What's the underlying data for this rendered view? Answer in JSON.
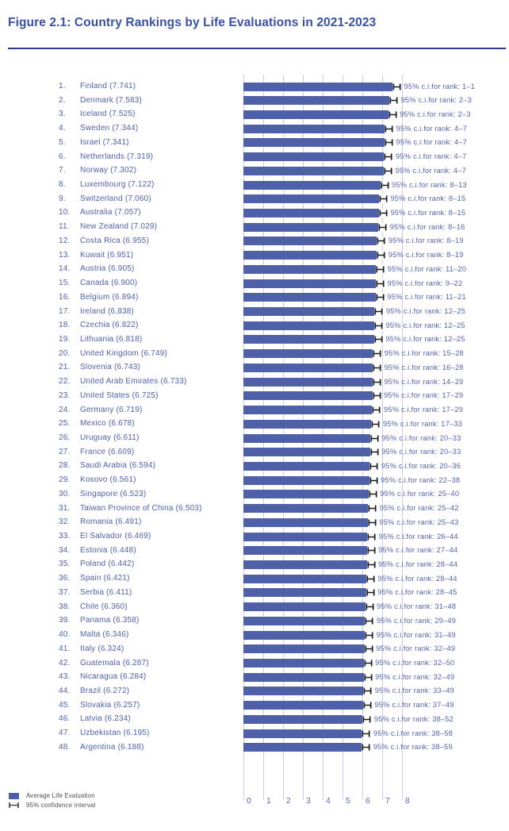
{
  "figure": {
    "title": "Figure 2.1: Country Rankings by Life Evaluations in 2021-2023"
  },
  "legend": {
    "bar_label": "Average Life Evaluation",
    "ci_label": "95% confidence interval"
  },
  "chart_data": {
    "type": "bar",
    "orientation": "horizontal",
    "title": "Figure 2.1: Country Rankings by Life Evaluations in 2021-2023",
    "xlabel": "",
    "ylabel": "",
    "xlim": [
      0,
      8
    ],
    "x_ticks": [
      "0",
      "1",
      "2",
      "3",
      "4",
      "5",
      "6",
      "7",
      "8"
    ],
    "grid": true,
    "legend_position": "bottom-left",
    "bar_color": "#4e61a8",
    "gridline_color": "#c7cde7",
    "errorbar_color": "#1b1b1b",
    "ci_prefix": "95% c.i.for rank: ",
    "rows": [
      {
        "rank": 1,
        "country": "Finland",
        "score": 7.741,
        "rank_ci": "1–1"
      },
      {
        "rank": 2,
        "country": "Denmark",
        "score": 7.583,
        "rank_ci": "2–3"
      },
      {
        "rank": 3,
        "country": "Iceland",
        "score": 7.525,
        "rank_ci": "2–3"
      },
      {
        "rank": 4,
        "country": "Sweden",
        "score": 7.344,
        "rank_ci": "4–7"
      },
      {
        "rank": 5,
        "country": "Israel",
        "score": 7.341,
        "rank_ci": "4–7"
      },
      {
        "rank": 6,
        "country": "Netherlands",
        "score": 7.319,
        "rank_ci": "4–7"
      },
      {
        "rank": 7,
        "country": "Norway",
        "score": 7.302,
        "rank_ci": "4–7"
      },
      {
        "rank": 8,
        "country": "Luxembourg",
        "score": 7.122,
        "rank_ci": "8–13"
      },
      {
        "rank": 9,
        "country": "Switzerland",
        "score": 7.06,
        "rank_ci": "8–15"
      },
      {
        "rank": 10,
        "country": "Australia",
        "score": 7.057,
        "rank_ci": "8–15"
      },
      {
        "rank": 11,
        "country": "New Zealand",
        "score": 7.029,
        "rank_ci": "8–16"
      },
      {
        "rank": 12,
        "country": "Costa Rica",
        "score": 6.955,
        "rank_ci": "8–19"
      },
      {
        "rank": 13,
        "country": "Kuwait",
        "score": 6.951,
        "rank_ci": "8–19"
      },
      {
        "rank": 14,
        "country": "Austria",
        "score": 6.905,
        "rank_ci": "11–20"
      },
      {
        "rank": 15,
        "country": "Canada",
        "score": 6.9,
        "rank_ci": "9–22"
      },
      {
        "rank": 16,
        "country": "Belgium",
        "score": 6.894,
        "rank_ci": "11–21"
      },
      {
        "rank": 17,
        "country": "Ireland",
        "score": 6.838,
        "rank_ci": "12–25"
      },
      {
        "rank": 18,
        "country": "Czechia",
        "score": 6.822,
        "rank_ci": "12–25"
      },
      {
        "rank": 19,
        "country": "Lithuania",
        "score": 6.818,
        "rank_ci": "12–25"
      },
      {
        "rank": 20,
        "country": "United Kingdom",
        "score": 6.749,
        "rank_ci": "15–28"
      },
      {
        "rank": 21,
        "country": "Slovenia",
        "score": 6.743,
        "rank_ci": "16–28"
      },
      {
        "rank": 22,
        "country": "United Arab Emirates",
        "score": 6.733,
        "rank_ci": "14–29"
      },
      {
        "rank": 23,
        "country": "United States",
        "score": 6.725,
        "rank_ci": "17–29"
      },
      {
        "rank": 24,
        "country": "Germany",
        "score": 6.719,
        "rank_ci": "17–29"
      },
      {
        "rank": 25,
        "country": "Mexico",
        "score": 6.678,
        "rank_ci": "17–33"
      },
      {
        "rank": 26,
        "country": "Uruguay",
        "score": 6.611,
        "rank_ci": "20–33"
      },
      {
        "rank": 27,
        "country": "France",
        "score": 6.609,
        "rank_ci": "20–33"
      },
      {
        "rank": 28,
        "country": "Saudi Arabia",
        "score": 6.594,
        "rank_ci": "20–36"
      },
      {
        "rank": 29,
        "country": "Kosovo",
        "score": 6.561,
        "rank_ci": "22–38"
      },
      {
        "rank": 30,
        "country": "Singapore",
        "score": 6.523,
        "rank_ci": "25–40"
      },
      {
        "rank": 31,
        "country": "Taiwan Province of China",
        "score": 6.503,
        "rank_ci": "25–42"
      },
      {
        "rank": 32,
        "country": "Romania",
        "score": 6.491,
        "rank_ci": "25–43"
      },
      {
        "rank": 33,
        "country": "El Salvador",
        "score": 6.469,
        "rank_ci": "26–44"
      },
      {
        "rank": 34,
        "country": "Estonia",
        "score": 6.448,
        "rank_ci": "27–44"
      },
      {
        "rank": 35,
        "country": "Poland",
        "score": 6.442,
        "rank_ci": "28–44"
      },
      {
        "rank": 36,
        "country": "Spain",
        "score": 6.421,
        "rank_ci": "28–44"
      },
      {
        "rank": 37,
        "country": "Serbia",
        "score": 6.411,
        "rank_ci": "28–45"
      },
      {
        "rank": 38,
        "country": "Chile",
        "score": 6.36,
        "rank_ci": "31–48"
      },
      {
        "rank": 39,
        "country": "Panama",
        "score": 6.358,
        "rank_ci": "29–49"
      },
      {
        "rank": 40,
        "country": "Malta",
        "score": 6.346,
        "rank_ci": "31–49"
      },
      {
        "rank": 41,
        "country": "Italy",
        "score": 6.324,
        "rank_ci": "32–49"
      },
      {
        "rank": 42,
        "country": "Guatemala",
        "score": 6.287,
        "rank_ci": "32–50"
      },
      {
        "rank": 43,
        "country": "Nicaragua",
        "score": 6.284,
        "rank_ci": "32–49"
      },
      {
        "rank": 44,
        "country": "Brazil",
        "score": 6.272,
        "rank_ci": "33–49"
      },
      {
        "rank": 45,
        "country": "Slovakia",
        "score": 6.257,
        "rank_ci": "37–49"
      },
      {
        "rank": 46,
        "country": "Latvia",
        "score": 6.234,
        "rank_ci": "38–52"
      },
      {
        "rank": 47,
        "country": "Uzbekistan",
        "score": 6.195,
        "rank_ci": "38–58"
      },
      {
        "rank": 48,
        "country": "Argentina",
        "score": 6.188,
        "rank_ci": "38–59"
      }
    ]
  }
}
